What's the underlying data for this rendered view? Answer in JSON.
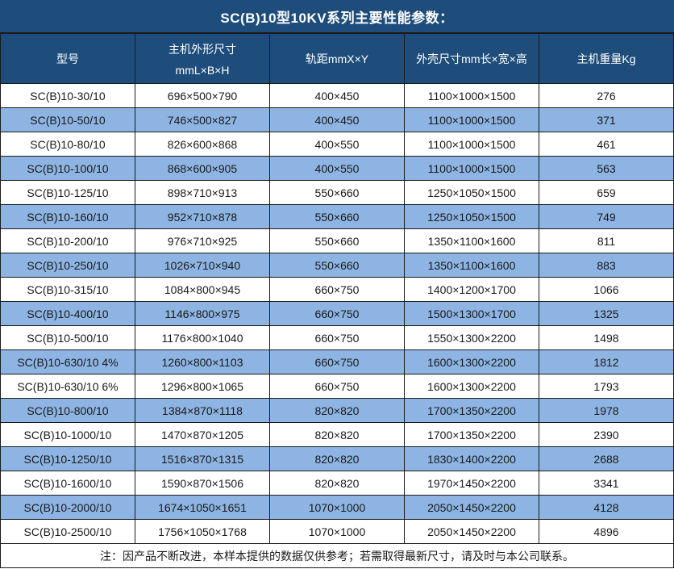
{
  "title": "SC(B)10型10KV系列主要性能参数：",
  "colors": {
    "header_bg": "#1E4D7B",
    "alt_row_bg": "#8DB4E2",
    "border": "#1A1A1A",
    "text": "#1A1A1A",
    "header_text": "#FFFFFF"
  },
  "table": {
    "columns": [
      {
        "label": "型号",
        "sub": ""
      },
      {
        "label": "主机外形尺寸",
        "sub": "mmL×B×H"
      },
      {
        "label": "轨距mmX×Y",
        "sub": ""
      },
      {
        "label": "外壳尺寸mm长×宽×高",
        "sub": ""
      },
      {
        "label": "主机重量Kg",
        "sub": ""
      }
    ],
    "rows": [
      [
        "SC(B)10-30/10",
        "696×500×790",
        "400×450",
        "1100×1000×1500",
        "276"
      ],
      [
        "SC(B)10-50/10",
        "746×500×827",
        "400×450",
        "1100×1000×1500",
        "371"
      ],
      [
        "SC(B)10-80/10",
        "826×600×868",
        "400×550",
        "1100×1000×1500",
        "461"
      ],
      [
        "SC(B)10-100/10",
        "868×600×905",
        "400×550",
        "1100×1000×1500",
        "563"
      ],
      [
        "SC(B)10-125/10",
        "898×710×913",
        "550×660",
        "1250×1050×1500",
        "659"
      ],
      [
        "SC(B)10-160/10",
        "952×710×878",
        "550×660",
        "1250×1050×1500",
        "749"
      ],
      [
        "SC(B)10-200/10",
        "976×710×925",
        "550×660",
        "1350×1100×1600",
        "811"
      ],
      [
        "SC(B)10-250/10",
        "1026×710×940",
        "550×660",
        "1350×1100×1600",
        "883"
      ],
      [
        "SC(B)10-315/10",
        "1084×800×945",
        "660×750",
        "1400×1200×1700",
        "1066"
      ],
      [
        "SC(B)10-400/10",
        "1146×800×975",
        "660×750",
        "1500×1300×1700",
        "1325"
      ],
      [
        "SC(B)10-500/10",
        "1176×800×1040",
        "660×750",
        "1550×1300×2200",
        "1498"
      ],
      [
        "SC(B)10-630/10 4%",
        "1260×800×1103",
        "660×750",
        "1600×1300×2200",
        "1812"
      ],
      [
        "SC(B)10-630/10 6%",
        "1296×800×1065",
        "660×750",
        "1600×1300×2200",
        "1793"
      ],
      [
        "SC(B)10-800/10",
        "1384×870×1118",
        "820×820",
        "1700×1350×2200",
        "1978"
      ],
      [
        "SC(B)10-1000/10",
        "1470×870×1205",
        "820×820",
        "1700×1350×2200",
        "2390"
      ],
      [
        "SC(B)10-1250/10",
        "1516×870×1315",
        "820×820",
        "1830×1400×2200",
        "2688"
      ],
      [
        "SC(B)10-1600/10",
        "1590×870×1506",
        "820×820",
        "1970×1450×2200",
        "3341"
      ],
      [
        "SC(B)10-2000/10",
        "1674×1050×1651",
        "1070×1000",
        "2050×1450×2200",
        "4128"
      ],
      [
        "SC(B)10-2500/10",
        "1756×1050×1768",
        "1070×1000",
        "2050×1450×2200",
        "4896"
      ]
    ]
  },
  "footer_note": "注：因产品不断改进，本样本提供的数据仅供参考；若需取得最新尺寸，请及时与本公司联系。"
}
